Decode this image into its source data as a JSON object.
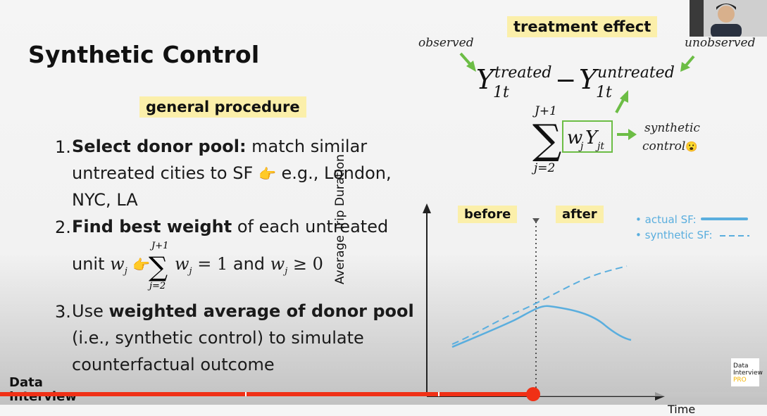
{
  "slide": {
    "title": "Synthetic Control",
    "procedure_heading": "general procedure",
    "step1": {
      "num": "1.",
      "bold": "Select donor pool:",
      "text1": " match similar",
      "line2a": "untreated cities to SF",
      "line2b": " e.g., London,",
      "line3": "NYC, LA"
    },
    "step2": {
      "num": "2.",
      "bold": "Find best weight",
      "text1": " of each untreated",
      "line2a": "unit ",
      "line2b": " and ",
      "sum_eq": "= 1",
      "geq": "≥ 0"
    },
    "step3": {
      "num": "3.",
      "text0": "Use ",
      "bold": "weighted average of donor pool",
      "line2": "(i.e., synthetic control) to simulate",
      "line3": "counterfactual outcome"
    },
    "treatment_effect": "treatment effect",
    "observed": "observed",
    "unobserved": "unobserved",
    "synthetic": "synthetic",
    "control": "control",
    "pointing_emoji": "👉",
    "surprised_emoji": "😮"
  },
  "chart_data": {
    "type": "line",
    "ylabel": "Average Trip Duration",
    "xlabel": "Time",
    "regions": [
      "before",
      "after"
    ],
    "series": [
      {
        "name": "actual SF:",
        "style": "solid",
        "color": "#5aaede"
      },
      {
        "name": "synthetic SF:",
        "style": "dashed",
        "color": "#5aaede"
      }
    ]
  },
  "player": {
    "progress": 0.695,
    "watermark_line1": "Data",
    "watermark_line2": "Interview",
    "logo_line1": "Data",
    "logo_line2": "Interview",
    "logo_line3": "PRO"
  }
}
